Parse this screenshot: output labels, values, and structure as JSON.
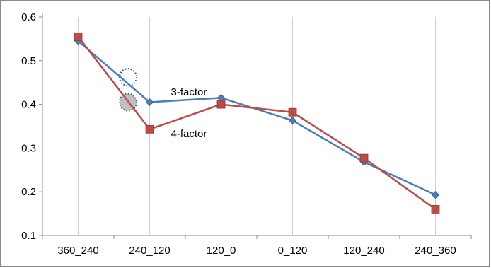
{
  "chart_data": {
    "type": "line",
    "title": "",
    "xlabel": "",
    "ylabel": "",
    "categories": [
      "360_240",
      "240_120",
      "120_0",
      "0_120",
      "120_240",
      "240_360"
    ],
    "ylim": [
      0.1,
      0.6
    ],
    "yticks": [
      "0.1",
      "0.2",
      "0.3",
      "0.4",
      "0.5",
      "0.6"
    ],
    "grid": "vertical",
    "legend": "none",
    "series": [
      {
        "marker": "diamond",
        "color": "#4a7ebb",
        "values": [
          0.545,
          0.405,
          0.415,
          0.363,
          0.268,
          0.193
        ]
      },
      {
        "marker": "square",
        "color": "#be4b48",
        "values": [
          0.555,
          0.343,
          0.4,
          0.382,
          0.277,
          0.16
        ]
      }
    ],
    "annotations": [
      {
        "text": "3-factor",
        "x": "240_120",
        "y": 0.42,
        "color": "#000000"
      },
      {
        "text": "4-factor",
        "x": "240_120",
        "y": 0.325,
        "color": "#000000"
      }
    ],
    "callouts": [
      {
        "shape": "dotted-circle",
        "fill": "none",
        "x": "between 360_240 and 240_120",
        "y": 0.462
      },
      {
        "shape": "dotted-circle",
        "fill": "#c0c0c0",
        "x": "between 360_240 and 240_120",
        "y": 0.405
      }
    ]
  }
}
